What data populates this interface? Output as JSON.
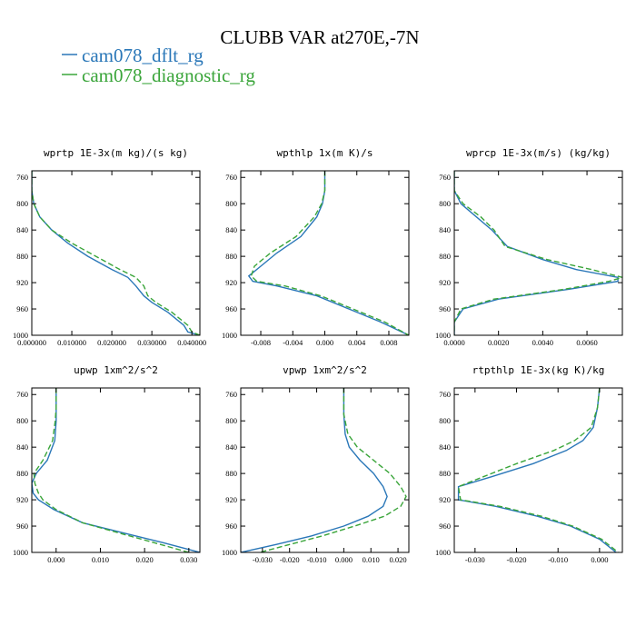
{
  "figure": {
    "title": "CLUBB VAR at270E,-7N",
    "legend": [
      {
        "label": "cam078_dflt_rg",
        "color": "#2a77b8",
        "dash": "none"
      },
      {
        "label": "cam078_diagnostic_rg",
        "color": "#3aa53a",
        "dash": "6,3"
      }
    ]
  },
  "chart_data": [
    {
      "type": "line",
      "title": "wprtp  1E-3x(m kg)/(s kg)",
      "xlim": [
        0.0,
        0.042
      ],
      "ylim": [
        1000,
        750
      ],
      "xticks": [
        0.0,
        0.01,
        0.02,
        0.03,
        0.04
      ],
      "xtick_labels": [
        "0.000000",
        "0.010000",
        "0.020000",
        "0.030000",
        "0.040000"
      ],
      "yticks": [
        760,
        800,
        840,
        880,
        920,
        960,
        1000
      ],
      "series": [
        {
          "name": "cam078_dflt_rg",
          "x": [
            0.0,
            0.0,
            0.0005,
            0.002,
            0.005,
            0.009,
            0.014,
            0.02,
            0.024,
            0.026,
            0.028,
            0.03,
            0.034,
            0.038,
            0.039,
            0.042
          ],
          "y": [
            750,
            780,
            800,
            820,
            840,
            860,
            880,
            900,
            912,
            925,
            940,
            950,
            965,
            985,
            995,
            1000
          ]
        },
        {
          "name": "cam078_diagnostic_rg",
          "x": [
            0.0,
            0.0,
            0.0005,
            0.002,
            0.005,
            0.01,
            0.016,
            0.022,
            0.026,
            0.028,
            0.029,
            0.031,
            0.035,
            0.039,
            0.04,
            0.042
          ],
          "y": [
            750,
            780,
            800,
            820,
            840,
            860,
            880,
            900,
            912,
            925,
            940,
            950,
            965,
            985,
            995,
            1000
          ]
        }
      ]
    },
    {
      "type": "line",
      "title": "wpthlp  1x(m K)/s",
      "xlim": [
        -0.0105,
        0.0105
      ],
      "ylim": [
        1000,
        750
      ],
      "xticks": [
        -0.008,
        -0.004,
        0.0,
        0.004,
        0.008
      ],
      "xtick_labels": [
        "-0.008",
        "-0.004",
        "0.000",
        "0.004",
        "0.008"
      ],
      "yticks": [
        760,
        800,
        840,
        880,
        920,
        960,
        1000
      ],
      "series": [
        {
          "name": "cam078_dflt_rg",
          "x": [
            0.0,
            0.0,
            -0.0003,
            -0.001,
            -0.003,
            -0.006,
            -0.008,
            -0.0095,
            -0.009,
            -0.006,
            -0.001,
            0.003,
            0.007,
            0.0105
          ],
          "y": [
            750,
            780,
            800,
            820,
            850,
            875,
            895,
            910,
            918,
            925,
            940,
            960,
            980,
            1000
          ]
        },
        {
          "name": "cam078_diagnostic_rg",
          "x": [
            0.0,
            0.0,
            -0.0004,
            -0.0013,
            -0.0036,
            -0.0068,
            -0.0088,
            -0.0092,
            -0.0085,
            -0.005,
            -0.0005,
            0.0035,
            0.0075,
            0.0105
          ],
          "y": [
            750,
            780,
            800,
            820,
            850,
            875,
            895,
            910,
            918,
            925,
            940,
            960,
            980,
            1000
          ]
        }
      ]
    },
    {
      "type": "line",
      "title": "wprcp  1E-3x(m/s) (kg/kg)",
      "xlim": [
        0.0,
        0.0076
      ],
      "ylim": [
        1000,
        750
      ],
      "xticks": [
        0.0,
        0.002,
        0.004,
        0.006
      ],
      "xtick_labels": [
        "0.0000",
        "0.0020",
        "0.0040",
        "0.0060"
      ],
      "yticks": [
        760,
        800,
        840,
        880,
        920,
        960,
        1000
      ],
      "series": [
        {
          "name": "cam078_dflt_rg",
          "x": [
            0.0,
            0.0,
            0.0003,
            0.001,
            0.0017,
            0.0024,
            0.004,
            0.0055,
            0.0074,
            0.0074,
            0.0052,
            0.002,
            0.0004,
            0.0,
            0.0
          ],
          "y": [
            750,
            780,
            800,
            820,
            840,
            865,
            885,
            900,
            912,
            918,
            930,
            945,
            960,
            980,
            1000
          ]
        },
        {
          "name": "cam078_diagnostic_rg",
          "x": [
            0.0,
            0.0,
            0.0004,
            0.0012,
            0.0018,
            0.0023,
            0.0042,
            0.0062,
            0.0076,
            0.007,
            0.005,
            0.0018,
            0.0003,
            0.0,
            0.0
          ],
          "y": [
            750,
            780,
            800,
            820,
            840,
            865,
            885,
            900,
            912,
            918,
            930,
            945,
            960,
            980,
            1000
          ]
        }
      ]
    },
    {
      "type": "line",
      "title": "upwp  1xm^2/s^2",
      "xlim": [
        -0.0055,
        0.0325
      ],
      "ylim": [
        1000,
        750
      ],
      "xticks": [
        0.0,
        0.01,
        0.02,
        0.03
      ],
      "xtick_labels": [
        "0.000",
        "0.010",
        "0.020",
        "0.030"
      ],
      "yticks": [
        760,
        800,
        840,
        880,
        920,
        960,
        1000
      ],
      "series": [
        {
          "name": "cam078_dflt_rg",
          "x": [
            0.0,
            0.0,
            0.0,
            -0.0003,
            -0.002,
            -0.0045,
            -0.0055,
            -0.0052,
            -0.004,
            -0.0005,
            0.006,
            0.015,
            0.024,
            0.0325
          ],
          "y": [
            750,
            780,
            800,
            830,
            860,
            880,
            895,
            910,
            920,
            935,
            955,
            970,
            985,
            1000
          ]
        },
        {
          "name": "cam078_diagnostic_rg",
          "x": [
            0.0,
            0.0,
            -0.0002,
            -0.0008,
            -0.003,
            -0.005,
            -0.0048,
            -0.004,
            -0.003,
            0.0,
            0.006,
            0.014,
            0.022,
            0.03
          ],
          "y": [
            750,
            780,
            800,
            830,
            860,
            880,
            895,
            910,
            920,
            935,
            955,
            970,
            985,
            1000
          ]
        }
      ]
    },
    {
      "type": "line",
      "title": "vpwp  1xm^2/s^2",
      "xlim": [
        -0.038,
        0.024
      ],
      "ylim": [
        1000,
        750
      ],
      "xticks": [
        -0.03,
        -0.02,
        -0.01,
        0.0,
        0.01,
        0.02
      ],
      "xtick_labels": [
        "-0.030",
        "-0.020",
        "-0.010",
        "0.000",
        "0.010",
        "0.020"
      ],
      "yticks": [
        760,
        800,
        840,
        880,
        920,
        960,
        1000
      ],
      "series": [
        {
          "name": "cam078_dflt_rg",
          "x": [
            0.0,
            0.0,
            0.0005,
            0.002,
            0.006,
            0.011,
            0.0145,
            0.016,
            0.0145,
            0.009,
            0.0,
            -0.012,
            -0.025,
            -0.038
          ],
          "y": [
            750,
            790,
            820,
            840,
            860,
            880,
            900,
            915,
            930,
            945,
            960,
            975,
            988,
            1000
          ]
        },
        {
          "name": "cam078_diagnostic_rg",
          "x": [
            0.0,
            0.0,
            0.0015,
            0.005,
            0.011,
            0.017,
            0.021,
            0.023,
            0.021,
            0.015,
            0.004,
            -0.008,
            -0.02,
            -0.031
          ],
          "y": [
            750,
            790,
            820,
            840,
            860,
            880,
            900,
            915,
            930,
            945,
            960,
            975,
            988,
            1000
          ]
        }
      ]
    },
    {
      "type": "line",
      "title": "rtpthlp  1E-3x(kg K)/kg",
      "xlim": [
        -0.035,
        0.0055
      ],
      "ylim": [
        1000,
        750
      ],
      "xticks": [
        -0.03,
        -0.02,
        -0.01,
        0.0
      ],
      "xtick_labels": [
        "-0.030",
        "-0.020",
        "-0.010",
        "0.000"
      ],
      "yticks": [
        760,
        800,
        840,
        880,
        920,
        960,
        1000
      ],
      "series": [
        {
          "name": "cam078_dflt_rg",
          "x": [
            0.0,
            -0.0005,
            -0.0015,
            -0.004,
            -0.008,
            -0.016,
            -0.026,
            -0.034,
            -0.034,
            -0.025,
            -0.015,
            -0.007,
            0.0,
            0.004
          ],
          "y": [
            750,
            780,
            810,
            830,
            845,
            865,
            885,
            900,
            920,
            930,
            945,
            960,
            980,
            1000
          ]
        },
        {
          "name": "cam078_diagnostic_rg",
          "x": [
            0.0,
            -0.0005,
            -0.002,
            -0.006,
            -0.011,
            -0.02,
            -0.028,
            -0.034,
            -0.0335,
            -0.024,
            -0.014,
            -0.0065,
            0.0005,
            0.0045
          ],
          "y": [
            750,
            780,
            810,
            830,
            845,
            865,
            885,
            900,
            920,
            930,
            945,
            960,
            980,
            1000
          ]
        }
      ]
    }
  ]
}
